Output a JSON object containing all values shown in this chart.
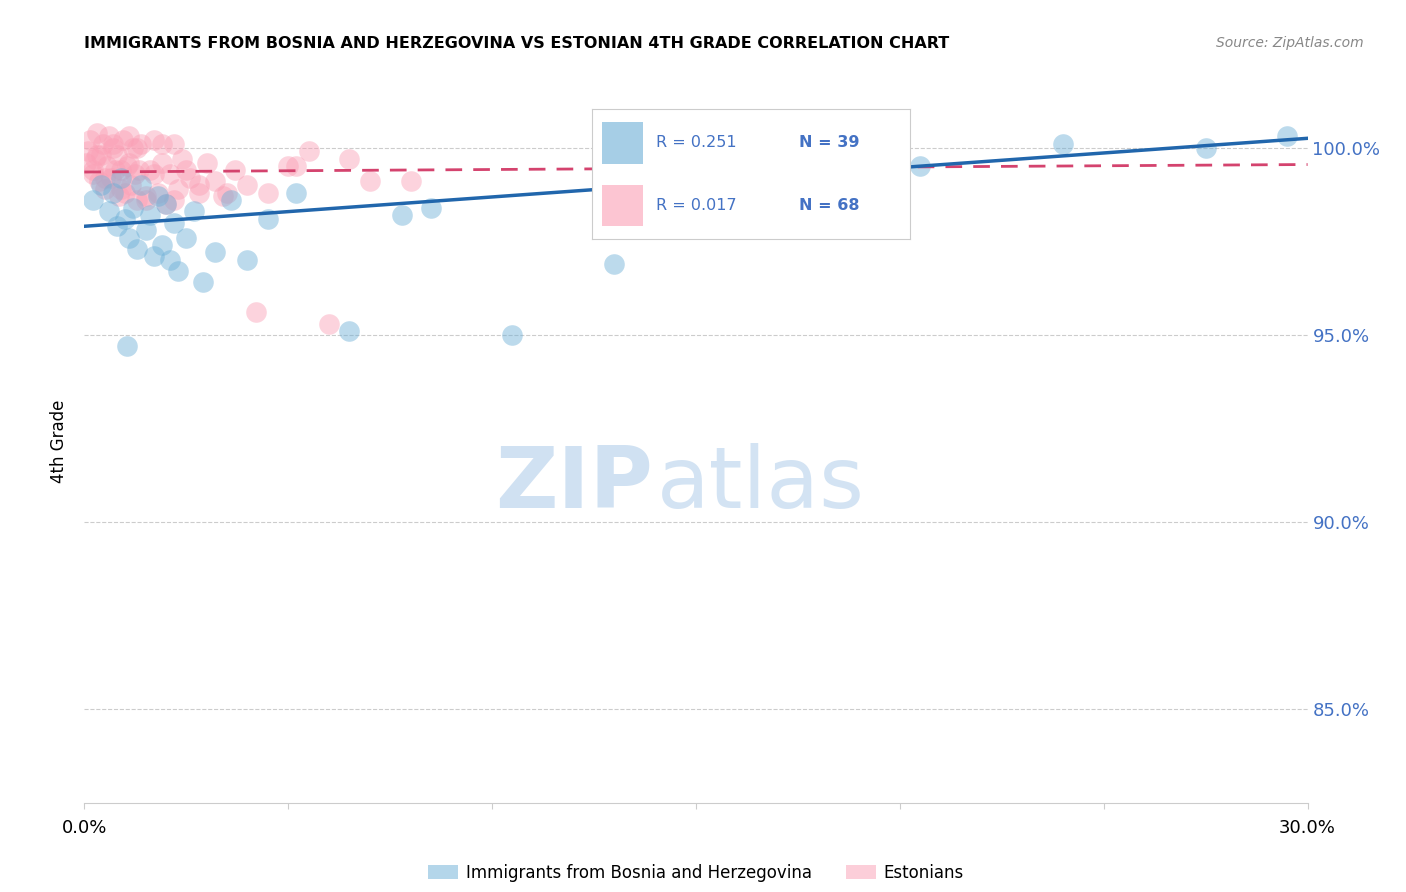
{
  "title": "IMMIGRANTS FROM BOSNIA AND HERZEGOVINA VS ESTONIAN 4TH GRADE CORRELATION CHART",
  "source": "Source: ZipAtlas.com",
  "ylabel": "4th Grade",
  "xlim": [
    0.0,
    30.0
  ],
  "ylim": [
    82.5,
    101.8
  ],
  "yticks": [
    85.0,
    90.0,
    95.0,
    100.0
  ],
  "ytick_labels_right": [
    "85.0%",
    "90.0%",
    "95.0%",
    "100.0%"
  ],
  "blue_color": "#6baed6",
  "pink_color": "#fa9fb5",
  "blue_line_color": "#2166ac",
  "pink_line_color": "#d4436e",
  "legend_label_blue": "Immigrants from Bosnia and Herzegovina",
  "legend_label_pink": "Estonians",
  "blue_scatter_x": [
    0.2,
    0.4,
    0.6,
    0.7,
    0.8,
    0.9,
    1.0,
    1.1,
    1.2,
    1.3,
    1.4,
    1.5,
    1.6,
    1.7,
    1.8,
    1.9,
    2.0,
    2.1,
    2.2,
    2.3,
    2.5,
    2.7,
    2.9,
    3.2,
    3.6,
    4.0,
    4.5,
    5.2,
    6.5,
    7.8,
    8.5,
    10.5,
    13.0,
    16.5,
    20.5,
    24.0,
    27.5,
    29.5,
    1.05
  ],
  "blue_scatter_y": [
    98.6,
    99.0,
    98.3,
    98.8,
    97.9,
    99.2,
    98.1,
    97.6,
    98.4,
    97.3,
    99.0,
    97.8,
    98.2,
    97.1,
    98.7,
    97.4,
    98.5,
    97.0,
    98.0,
    96.7,
    97.6,
    98.3,
    96.4,
    97.2,
    98.6,
    97.0,
    98.1,
    98.8,
    95.1,
    98.2,
    98.4,
    95.0,
    96.9,
    99.8,
    99.5,
    100.1,
    100.0,
    100.3,
    94.7
  ],
  "pink_scatter_x": [
    0.05,
    0.1,
    0.15,
    0.2,
    0.25,
    0.3,
    0.35,
    0.4,
    0.45,
    0.5,
    0.55,
    0.6,
    0.65,
    0.7,
    0.75,
    0.8,
    0.85,
    0.9,
    0.95,
    1.0,
    1.05,
    1.1,
    1.15,
    1.2,
    1.25,
    1.3,
    1.35,
    1.4,
    1.5,
    1.6,
    1.7,
    1.8,
    1.9,
    2.0,
    2.1,
    2.2,
    2.3,
    2.4,
    2.6,
    2.8,
    3.0,
    3.2,
    3.4,
    3.7,
    4.0,
    4.5,
    5.0,
    5.5,
    6.0,
    7.0,
    0.3,
    0.5,
    0.7,
    0.9,
    1.1,
    1.3,
    1.5,
    1.7,
    1.9,
    2.2,
    2.5,
    2.8,
    3.5,
    4.2,
    5.2,
    6.5,
    8.0,
    0.2
  ],
  "pink_scatter_y": [
    99.6,
    99.9,
    100.2,
    99.3,
    99.7,
    100.4,
    99.1,
    99.8,
    100.1,
    98.9,
    99.5,
    100.3,
    99.2,
    100.0,
    99.4,
    99.8,
    98.7,
    99.4,
    100.2,
    98.8,
    99.5,
    100.3,
    99.0,
    100.0,
    99.3,
    98.6,
    99.4,
    100.1,
    98.6,
    99.4,
    100.2,
    98.8,
    99.6,
    98.5,
    99.3,
    100.1,
    98.9,
    99.7,
    99.2,
    98.8,
    99.6,
    99.1,
    98.7,
    99.4,
    99.0,
    98.8,
    99.5,
    99.9,
    95.3,
    99.1,
    99.8,
    99.2,
    100.1,
    98.9,
    99.6,
    100.0,
    98.7,
    99.3,
    100.1,
    98.6,
    99.4,
    99.0,
    98.8,
    95.6,
    99.5,
    99.7,
    99.1,
    99.4
  ],
  "blue_trend_x0": 0.0,
  "blue_trend_y0": 97.9,
  "blue_trend_x1": 30.0,
  "blue_trend_y1": 100.25,
  "pink_trend_x0": 0.0,
  "pink_trend_y0": 99.35,
  "pink_trend_x1": 30.0,
  "pink_trend_y1": 99.55,
  "grid_color": "#cccccc",
  "watermark_zip_color": "#c8dcf0",
  "watermark_atlas_color": "#a8c8e8"
}
